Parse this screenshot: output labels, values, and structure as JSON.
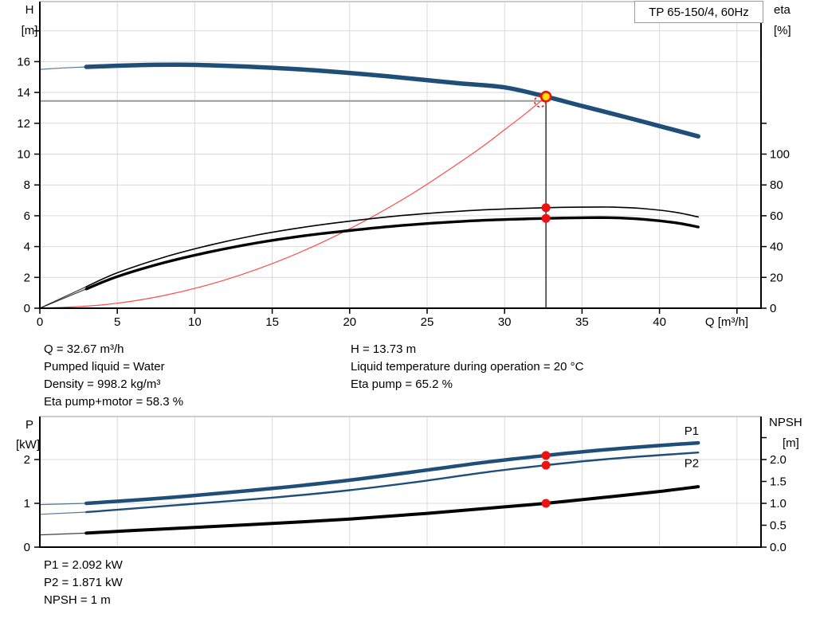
{
  "title_box": {
    "label": "TP 65-150/4, 60Hz"
  },
  "colors": {
    "curve_blue": "#1f4e79",
    "curve_black": "#000000",
    "curve_red": "#ff4d4d",
    "dot_red": "#ee1111",
    "duty_fill": "#ffe100",
    "duty_stroke": "#ee1111",
    "grid": "#d9d9d9",
    "axis": "#000000",
    "ref_gray": "#9a9a9a",
    "label_blue": "#1f4e79"
  },
  "info_blocks": {
    "top_left": [
      "Q = 32.67 m³/h",
      "Pumped liquid = Water",
      "Density = 998.2 kg/m³",
      "Eta pump+motor = 58.3 %"
    ],
    "top_right": [
      "H = 13.73 m",
      "Liquid temperature during operation = 20 °C",
      "Eta pump = 65.2 %"
    ],
    "bottom": [
      "P1 = 2.092 kW",
      "P2 = 1.871 kW",
      "NPSH = 1 m"
    ]
  },
  "chart_data": [
    {
      "id": "head-chart",
      "type": "line",
      "title": "TP 65-150/4, 60Hz",
      "x_axis": {
        "label": "Q [m³/h]",
        "min": 0,
        "max": 46.5,
        "ticks": [
          {
            "v": 0,
            "label": "0"
          },
          {
            "v": 5,
            "label": "5"
          },
          {
            "v": 10,
            "label": "10"
          },
          {
            "v": 15,
            "label": "15"
          },
          {
            "v": 20,
            "label": "20"
          },
          {
            "v": 25,
            "label": "25"
          },
          {
            "v": 30,
            "label": "30"
          },
          {
            "v": 35,
            "label": "35"
          },
          {
            "v": 40,
            "label": "40"
          },
          {
            "v": 45,
            "label": ""
          }
        ],
        "grid_ticks": [
          5,
          10,
          15,
          20,
          25,
          30,
          35,
          40,
          45
        ]
      },
      "left_axis": {
        "name": "H",
        "title_lines": [
          "H",
          "[m]"
        ],
        "min": 0,
        "max": 20,
        "ticks": [
          {
            "v": 0,
            "label": "0"
          },
          {
            "v": 2,
            "label": "2"
          },
          {
            "v": 4,
            "label": "4"
          },
          {
            "v": 6,
            "label": "6"
          },
          {
            "v": 8,
            "label": "8"
          },
          {
            "v": 10,
            "label": "10"
          },
          {
            "v": 12,
            "label": "12"
          },
          {
            "v": 14,
            "label": "14"
          },
          {
            "v": 16,
            "label": "16"
          },
          {
            "v": 18,
            "label": ""
          }
        ],
        "grid_values": [
          2,
          4,
          6,
          8,
          10,
          12,
          14,
          16,
          18
        ]
      },
      "right_axis": {
        "name": "eta",
        "title_lines": [
          "eta",
          "[%]"
        ],
        "min": 0,
        "max": 200,
        "ticks": [
          {
            "v": 0,
            "label": "0"
          },
          {
            "v": 20,
            "label": "20"
          },
          {
            "v": 40,
            "label": "40"
          },
          {
            "v": 60,
            "label": "60"
          },
          {
            "v": 80,
            "label": "80"
          },
          {
            "v": 100,
            "label": "100"
          },
          {
            "v": 120,
            "label": ""
          }
        ]
      },
      "series": [
        {
          "name": "head-curve",
          "scale": "H",
          "color": "curve_blue",
          "width": 5.5,
          "lead": [
            [
              0,
              15.5
            ],
            [
              1.5,
              15.59
            ],
            [
              3,
              15.66
            ]
          ],
          "points": [
            [
              3,
              15.66
            ],
            [
              6,
              15.76
            ],
            [
              9,
              15.8
            ],
            [
              12,
              15.73
            ],
            [
              15,
              15.6
            ],
            [
              18,
              15.42
            ],
            [
              21,
              15.18
            ],
            [
              24,
              14.9
            ],
            [
              27,
              14.6
            ],
            [
              30,
              14.33
            ],
            [
              32.67,
              13.73
            ],
            [
              35,
              13.12
            ],
            [
              38,
              12.35
            ],
            [
              40,
              11.82
            ],
            [
              42.5,
              11.15
            ]
          ]
        },
        {
          "name": "system-curve",
          "scale": "H",
          "color": "curve_red",
          "width": 1.2,
          "lead": [],
          "points": [
            [
              0,
              0
            ],
            [
              4,
              0.21
            ],
            [
              8,
              0.82
            ],
            [
              12,
              1.85
            ],
            [
              16,
              3.29
            ],
            [
              20,
              5.15
            ],
            [
              24,
              7.41
            ],
            [
              28,
              10.08
            ],
            [
              30,
              11.58
            ],
            [
              31.5,
              12.75
            ],
            [
              32.67,
              13.73
            ]
          ]
        },
        {
          "name": "eta-pump-curve",
          "scale": "eta",
          "color": "curve_black",
          "width": 1.6,
          "lead": [
            [
              0,
              0
            ],
            [
              3,
              14
            ]
          ],
          "points": [
            [
              3,
              14
            ],
            [
              5,
              23
            ],
            [
              8,
              33
            ],
            [
              11,
              41
            ],
            [
              14,
              47.5
            ],
            [
              17,
              52.5
            ],
            [
              20,
              56.5
            ],
            [
              23,
              59.8
            ],
            [
              26,
              62.2
            ],
            [
              29,
              64
            ],
            [
              32.67,
              65.2
            ],
            [
              35,
              65.6
            ],
            [
              37,
              65.6
            ],
            [
              39,
              64.6
            ],
            [
              41,
              62.3
            ],
            [
              42.5,
              59.2
            ]
          ]
        },
        {
          "name": "eta-pump-motor-curve",
          "scale": "eta",
          "color": "curve_black",
          "width": 3.4,
          "lead": [
            [
              0,
              0
            ],
            [
              3,
              12.5
            ]
          ],
          "points": [
            [
              3,
              12.5
            ],
            [
              5,
              20.5
            ],
            [
              8,
              29.5
            ],
            [
              11,
              36.6
            ],
            [
              14,
              42.4
            ],
            [
              17,
              46.9
            ],
            [
              20,
              50.4
            ],
            [
              23,
              53.4
            ],
            [
              26,
              55.6
            ],
            [
              29,
              57.2
            ],
            [
              32.67,
              58.3
            ],
            [
              35,
              58.7
            ],
            [
              37,
              58.7
            ],
            [
              39,
              57.7
            ],
            [
              41,
              55.5
            ],
            [
              42.5,
              52.7
            ]
          ]
        }
      ],
      "markers": [
        {
          "kind": "ref-hline",
          "scale": "H",
          "v": 13.45,
          "q_from": 0,
          "q_to": 32.55,
          "color": "ref_gray",
          "width": 2,
          "under": true
        },
        {
          "kind": "vline",
          "q": 32.67,
          "scale": "H",
          "v_from": 13.73,
          "v_to": 0,
          "color": "curve_black",
          "width": 1.2
        },
        {
          "kind": "dot",
          "q": 32.67,
          "scale": "eta",
          "v": 65.2
        },
        {
          "kind": "dot",
          "q": 32.67,
          "scale": "eta",
          "v": 58.3
        },
        {
          "kind": "dashed-circle",
          "q": 32.3,
          "scale": "H",
          "v": 13.42
        },
        {
          "kind": "duty-point",
          "q": 32.67,
          "scale": "H",
          "v": 13.73
        }
      ],
      "duty_point": {
        "q": 32.67,
        "h": 13.73,
        "eta_pump": 65.2,
        "eta_pump_motor": 58.3
      }
    },
    {
      "id": "power-chart",
      "type": "line",
      "x_axis": {
        "min": 0,
        "max": 46.5,
        "ticks": [],
        "grid_ticks": [
          5,
          10,
          15,
          20,
          25,
          30,
          35,
          40,
          45
        ]
      },
      "left_axis": {
        "name": "P",
        "title_lines": [
          "P",
          "[kW]"
        ],
        "min": 0,
        "max": 3,
        "ticks": [
          {
            "v": 0,
            "label": "0"
          },
          {
            "v": 1,
            "label": "1"
          },
          {
            "v": 2,
            "label": "2"
          }
        ],
        "grid_values": [
          1,
          2
        ]
      },
      "right_axis": {
        "name": "NPSH",
        "title_lines": [
          "NPSH",
          "[m]"
        ],
        "min": 0,
        "max": 3,
        "ticks": [
          {
            "v": 0,
            "label": "0.0"
          },
          {
            "v": 0.5,
            "label": "0.5"
          },
          {
            "v": 1,
            "label": "1.0"
          },
          {
            "v": 1.5,
            "label": "1.5"
          },
          {
            "v": 2,
            "label": "2.0"
          },
          {
            "v": 2.5,
            "label": ""
          }
        ]
      },
      "series": [
        {
          "name": "p1-curve",
          "scale": "P",
          "color": "curve_blue",
          "width": 4.5,
          "lead": [
            [
              0,
              0.97
            ],
            [
              3,
              1.0
            ]
          ],
          "points": [
            [
              3,
              1.0
            ],
            [
              6,
              1.07
            ],
            [
              10,
              1.18
            ],
            [
              15,
              1.34
            ],
            [
              20,
              1.53
            ],
            [
              25,
              1.76
            ],
            [
              29,
              1.95
            ],
            [
              32.67,
              2.092
            ],
            [
              36,
              2.21
            ],
            [
              40,
              2.32
            ],
            [
              42.5,
              2.38
            ]
          ]
        },
        {
          "name": "p2-curve",
          "scale": "P",
          "color": "curve_blue",
          "width": 2.4,
          "lead": [
            [
              0,
              0.75
            ],
            [
              3,
              0.8
            ]
          ],
          "points": [
            [
              3,
              0.8
            ],
            [
              6,
              0.88
            ],
            [
              10,
              0.99
            ],
            [
              15,
              1.13
            ],
            [
              20,
              1.3
            ],
            [
              25,
              1.52
            ],
            [
              29,
              1.72
            ],
            [
              32.67,
              1.871
            ],
            [
              36,
              1.99
            ],
            [
              40,
              2.1
            ],
            [
              42.5,
              2.16
            ]
          ]
        },
        {
          "name": "npsh-curve",
          "scale": "NPSH",
          "color": "curve_black",
          "width": 4,
          "lead": [
            [
              0,
              0.28
            ],
            [
              3,
              0.32
            ]
          ],
          "points": [
            [
              3,
              0.32
            ],
            [
              6,
              0.38
            ],
            [
              10,
              0.45
            ],
            [
              15,
              0.54
            ],
            [
              20,
              0.64
            ],
            [
              25,
              0.77
            ],
            [
              30,
              0.92
            ],
            [
              32.67,
              1.0
            ],
            [
              36,
              1.12
            ],
            [
              40,
              1.27
            ],
            [
              42.5,
              1.38
            ]
          ]
        }
      ],
      "markers": [
        {
          "kind": "dot",
          "q": 32.67,
          "scale": "P",
          "v": 2.092
        },
        {
          "kind": "dot",
          "q": 32.67,
          "scale": "P",
          "v": 1.871
        },
        {
          "kind": "dot",
          "q": 32.67,
          "scale": "NPSH",
          "v": 1.0
        }
      ],
      "series_labels": [
        {
          "text": "P1",
          "q": 41.6,
          "scale": "P",
          "v": 2.56
        },
        {
          "text": "P2",
          "q": 41.6,
          "scale": "P",
          "v": 1.83
        }
      ],
      "duty_point": {
        "q": 32.67,
        "p1_kw": 2.092,
        "p2_kw": 1.871,
        "npsh_m": 1.0
      }
    }
  ]
}
